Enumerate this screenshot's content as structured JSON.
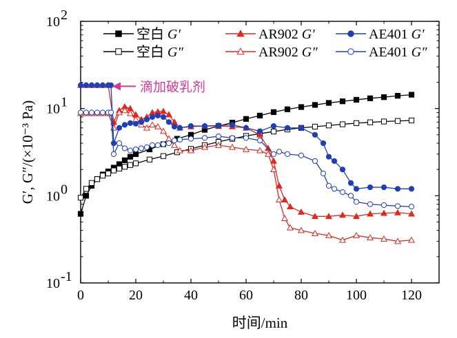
{
  "chart_data": {
    "type": "scatter",
    "xlabel": "时间/min",
    "ylabel": "G′, G″/(×10⁻³ Pa)",
    "xlim": [
      0,
      130
    ],
    "ylim": [
      0.1,
      100
    ],
    "yscale": "log",
    "x_ticks": [
      "0",
      "20",
      "40",
      "60",
      "80",
      "100",
      "120"
    ],
    "x_tick_values": [
      0,
      20,
      40,
      60,
      80,
      100,
      120
    ],
    "y_ticks": [
      {
        "value": 0.1,
        "base": "10",
        "exp": "-1"
      },
      {
        "value": 1,
        "base": "10",
        "exp": "0"
      },
      {
        "value": 10,
        "base": "10",
        "exp": "1"
      },
      {
        "value": 100,
        "base": "10",
        "exp": "2"
      }
    ],
    "annotation": {
      "text": "滴加破乳剂",
      "x": 10,
      "y": 18,
      "color": "#d6389a"
    },
    "legend_position": "top",
    "series": [
      {
        "name_main": "空白",
        "name_sym": "G′",
        "color": "#000000",
        "marker": "square",
        "filled": true,
        "x": [
          0,
          2,
          4,
          6,
          8,
          10,
          12,
          14,
          16,
          18,
          20,
          25,
          30,
          35,
          40,
          45,
          50,
          55,
          60,
          65,
          70,
          75,
          80,
          85,
          90,
          95,
          100,
          105,
          110,
          115,
          120
        ],
        "y": [
          0.62,
          1.0,
          1.3,
          1.55,
          1.75,
          1.9,
          2.1,
          2.3,
          2.55,
          2.8,
          3.0,
          3.4,
          3.9,
          4.5,
          5.0,
          5.7,
          6.3,
          6.9,
          7.6,
          8.3,
          9.1,
          9.8,
          10.4,
          11.0,
          11.6,
          12.1,
          12.6,
          13.1,
          13.5,
          14.0,
          14.4
        ]
      },
      {
        "name_main": "空白",
        "name_sym": "G″",
        "color": "#000000",
        "marker": "square",
        "filled": false,
        "x": [
          0,
          2,
          4,
          6,
          8,
          10,
          12,
          14,
          16,
          18,
          20,
          25,
          30,
          35,
          40,
          45,
          50,
          55,
          60,
          65,
          70,
          75,
          80,
          85,
          90,
          95,
          100,
          105,
          110,
          115,
          120
        ],
        "y": [
          0.95,
          1.2,
          1.4,
          1.55,
          1.7,
          1.8,
          1.95,
          2.05,
          2.15,
          2.25,
          2.35,
          2.6,
          2.85,
          3.15,
          3.45,
          3.8,
          4.15,
          4.5,
          4.85,
          5.15,
          5.45,
          5.75,
          6.0,
          6.2,
          6.4,
          6.6,
          6.8,
          6.95,
          7.1,
          7.2,
          7.3
        ]
      },
      {
        "name_main": "AR902",
        "name_sym": "G′",
        "color": "#e0281e",
        "marker": "triangle",
        "filled": true,
        "x": [
          0,
          2,
          4,
          6,
          8,
          10,
          12,
          14,
          16,
          18,
          20,
          22,
          24,
          26,
          28,
          30,
          32,
          34,
          36,
          40,
          45,
          50,
          55,
          60,
          65,
          68,
          70,
          72,
          74,
          76,
          80,
          85,
          90,
          95,
          100,
          105,
          110,
          115,
          120
        ],
        "y": [
          18.5,
          18.5,
          18.5,
          18.5,
          18.5,
          18.5,
          7.0,
          9.5,
          10.5,
          10.0,
          8.5,
          7.5,
          8.0,
          9.0,
          9.2,
          9.3,
          8.5,
          7.0,
          6.0,
          6.2,
          6.3,
          6.3,
          6.2,
          6.0,
          5.0,
          3.5,
          2.5,
          1.3,
          0.9,
          0.75,
          0.65,
          0.58,
          0.58,
          0.6,
          0.58,
          0.62,
          0.63,
          0.64,
          0.62
        ]
      },
      {
        "name_main": "AR902",
        "name_sym": "G″",
        "color": "#e0281e",
        "marker": "triangle",
        "filled": false,
        "x": [
          0,
          2,
          4,
          6,
          8,
          10,
          12,
          14,
          16,
          18,
          20,
          22,
          24,
          26,
          28,
          30,
          32,
          34,
          36,
          40,
          45,
          50,
          55,
          60,
          65,
          68,
          70,
          72,
          74,
          76,
          80,
          85,
          90,
          95,
          100,
          105,
          110,
          115,
          120
        ],
        "y": [
          8.8,
          8.8,
          8.8,
          8.8,
          8.8,
          8.8,
          6.0,
          9.0,
          9.5,
          8.8,
          7.5,
          6.5,
          6.0,
          6.5,
          6.2,
          5.5,
          4.5,
          3.8,
          3.3,
          3.3,
          3.6,
          3.8,
          3.6,
          3.4,
          3.3,
          3.0,
          2.0,
          0.9,
          0.55,
          0.43,
          0.4,
          0.37,
          0.35,
          0.31,
          0.35,
          0.33,
          0.32,
          0.3,
          0.31
        ]
      },
      {
        "name_main": "AE401",
        "name_sym": "G′",
        "color": "#1d3fb8",
        "marker": "circle",
        "filled": true,
        "x": [
          0,
          2,
          4,
          6,
          8,
          10,
          11,
          12,
          14,
          16,
          18,
          20,
          22,
          24,
          26,
          28,
          30,
          32,
          34,
          36,
          40,
          45,
          50,
          55,
          60,
          65,
          70,
          75,
          80,
          85,
          88,
          90,
          92,
          95,
          98,
          100,
          105,
          110,
          115,
          120
        ],
        "y": [
          18.5,
          18.5,
          18.5,
          18.5,
          18.5,
          18.5,
          18.5,
          4.0,
          6.0,
          6.5,
          6.8,
          6.7,
          7.0,
          7.5,
          8.0,
          8.3,
          8.0,
          7.0,
          6.2,
          6.0,
          6.3,
          6.3,
          6.4,
          6.5,
          6.0,
          5.5,
          6.3,
          6.0,
          6.0,
          5.0,
          4.0,
          2.8,
          2.5,
          2.0,
          1.4,
          1.2,
          1.25,
          1.25,
          1.2,
          1.2
        ]
      },
      {
        "name_main": "AE401",
        "name_sym": "G″",
        "color": "#1d3fb8",
        "marker": "circle",
        "filled": false,
        "x": [
          0,
          2,
          4,
          6,
          8,
          10,
          11,
          12,
          14,
          16,
          18,
          20,
          22,
          24,
          26,
          28,
          30,
          32,
          34,
          36,
          40,
          45,
          50,
          55,
          60,
          65,
          70,
          72,
          75,
          80,
          85,
          88,
          90,
          92,
          95,
          98,
          100,
          105,
          110,
          115,
          120
        ],
        "y": [
          9.0,
          9.0,
          9.0,
          9.0,
          9.0,
          9.0,
          9.0,
          3.0,
          4.0,
          3.5,
          3.3,
          3.4,
          3.5,
          3.6,
          3.8,
          3.8,
          3.9,
          4.0,
          4.3,
          4.4,
          4.5,
          4.6,
          4.8,
          4.6,
          4.6,
          4.3,
          3.0,
          3.2,
          3.0,
          2.9,
          2.5,
          1.8,
          1.3,
          1.2,
          1.1,
          1.0,
          0.85,
          0.8,
          0.78,
          0.76,
          0.75
        ]
      }
    ]
  }
}
